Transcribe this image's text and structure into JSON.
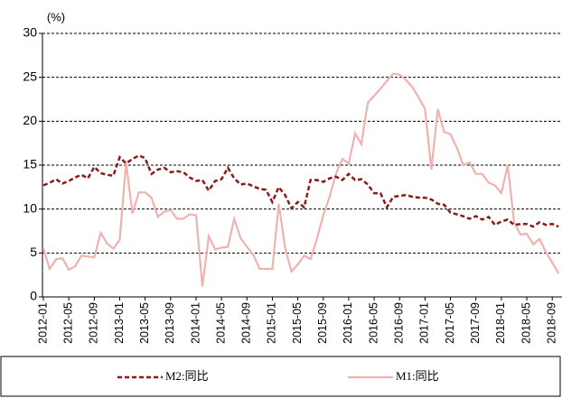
{
  "chart_data": {
    "type": "line",
    "y_unit": "(%)",
    "categories": [
      "2012-01",
      null,
      null,
      null,
      "2012-05",
      null,
      null,
      null,
      "2012-09",
      null,
      null,
      null,
      "2013-01",
      null,
      null,
      null,
      "2013-05",
      null,
      null,
      null,
      "2013-09",
      null,
      null,
      null,
      "2014-01",
      null,
      null,
      null,
      "2014-05",
      null,
      null,
      null,
      "2014-09",
      null,
      null,
      null,
      "2015-01",
      null,
      null,
      null,
      "2015-05",
      null,
      null,
      null,
      "2015-09",
      null,
      null,
      null,
      "2016-01",
      null,
      null,
      null,
      "2016-05",
      null,
      null,
      null,
      "2016-09",
      null,
      null,
      null,
      "2017-01",
      null,
      null,
      null,
      "2017-05",
      null,
      null,
      null,
      "2017-09",
      null,
      null,
      null,
      "2018-01",
      null,
      null,
      null,
      "2018-05",
      null,
      null,
      null,
      "2018-09",
      null
    ],
    "series": [
      {
        "name": "M2:同比",
        "color": "#8b1a1a",
        "dashed": true,
        "values": [
          12.7,
          13.0,
          13.4,
          12.9,
          13.2,
          13.6,
          13.9,
          13.5,
          14.8,
          14.1,
          13.9,
          13.8,
          15.9,
          15.2,
          15.7,
          16.1,
          15.8,
          14.0,
          14.5,
          14.7,
          14.2,
          14.3,
          14.2,
          13.6,
          13.2,
          13.3,
          12.1,
          13.2,
          13.4,
          14.7,
          13.5,
          12.8,
          12.9,
          12.6,
          12.3,
          12.2,
          10.8,
          12.5,
          11.6,
          10.1,
          10.8,
          10.2,
          13.3,
          13.3,
          13.1,
          13.5,
          13.7,
          13.3,
          14.0,
          13.3,
          13.4,
          12.8,
          11.8,
          11.8,
          10.2,
          11.4,
          11.5,
          11.6,
          11.4,
          11.3,
          11.3,
          11.1,
          10.6,
          10.5,
          9.6,
          9.4,
          9.2,
          8.9,
          9.2,
          8.8,
          9.1,
          8.2,
          8.6,
          8.8,
          8.2,
          8.3,
          8.3,
          8.0,
          8.5,
          8.2,
          8.3,
          8.0
        ]
      },
      {
        "name": "M1:同比",
        "color": "#f0b2ae",
        "dashed": false,
        "values": [
          5.5,
          3.2,
          4.3,
          4.4,
          3.1,
          3.5,
          4.7,
          4.6,
          4.5,
          7.3,
          6.1,
          5.5,
          6.5,
          15.3,
          9.5,
          11.9,
          11.9,
          11.3,
          9.1,
          9.7,
          9.9,
          8.9,
          8.9,
          9.4,
          9.3,
          1.2,
          6.9,
          5.4,
          5.6,
          5.7,
          8.9,
          6.7,
          5.7,
          4.8,
          3.2,
          3.2,
          3.2,
          10.6,
          5.6,
          2.9,
          3.7,
          4.7,
          4.3,
          6.6,
          9.3,
          11.4,
          14.0,
          15.7,
          15.2,
          18.6,
          17.4,
          22.1,
          22.9,
          23.7,
          24.6,
          25.4,
          25.3,
          24.7,
          23.9,
          22.7,
          21.4,
          14.5,
          21.4,
          18.8,
          18.5,
          17.0,
          15.0,
          15.3,
          14.0,
          14.0,
          13.0,
          12.7,
          11.8,
          15.0,
          8.5,
          7.1,
          7.2,
          6.0,
          6.6,
          5.1,
          3.9,
          2.7
        ]
      }
    ],
    "ylim": [
      0,
      30
    ],
    "yticks": [
      0,
      5,
      10,
      15,
      20,
      25,
      30
    ],
    "grid": true
  }
}
